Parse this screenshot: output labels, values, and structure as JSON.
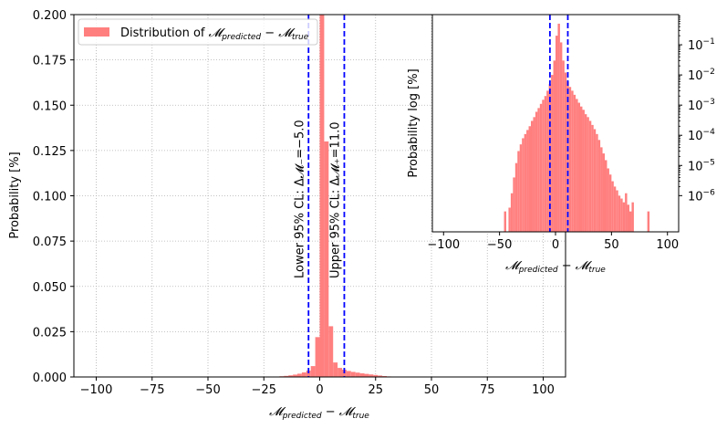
{
  "chart_data": [
    {
      "type": "bar",
      "name": "main",
      "xlabel": "𝓜predicted − 𝓜true",
      "ylabel": "Probability [%]",
      "xlim": [
        -110,
        110
      ],
      "ylim": [
        0,
        0.2
      ],
      "grid": true,
      "legend_placement": "upper-left",
      "xticks": [
        "−100",
        "−75",
        "−50",
        "−25",
        "0",
        "25",
        "50",
        "75",
        "100"
      ],
      "xtick_values": [
        -100,
        -75,
        -50,
        -25,
        0,
        25,
        50,
        75,
        100
      ],
      "yticks": [
        "0.000",
        "0.025",
        "0.050",
        "0.075",
        "0.100",
        "0.125",
        "0.150",
        "0.175",
        "0.200"
      ],
      "ytick_values": [
        0,
        0.025,
        0.05,
        0.075,
        0.1,
        0.125,
        0.15,
        0.175,
        0.2
      ],
      "legend_label": "Distribution of 𝓜predicted − 𝓜true",
      "series_color": "#ff7f7f",
      "line_color": "#0000ff",
      "bin_width": 2,
      "bins": [
        [
          -18,
          0.0004
        ],
        [
          -16,
          0.0006
        ],
        [
          -14,
          0.0009
        ],
        [
          -12,
          0.0013
        ],
        [
          -10,
          0.0018
        ],
        [
          -8,
          0.0025
        ],
        [
          -6,
          0.0035
        ],
        [
          -4,
          0.006
        ],
        [
          -2,
          0.022
        ],
        [
          0,
          0.26
        ],
        [
          2,
          0.13
        ],
        [
          4,
          0.028
        ],
        [
          6,
          0.008
        ],
        [
          8,
          0.005
        ],
        [
          10,
          0.004
        ],
        [
          12,
          0.0033
        ],
        [
          14,
          0.0028
        ],
        [
          16,
          0.0024
        ],
        [
          18,
          0.002
        ],
        [
          20,
          0.0017
        ],
        [
          22,
          0.0014
        ],
        [
          24,
          0.0011
        ],
        [
          26,
          0.0008
        ],
        [
          28,
          0.0005
        ],
        [
          30,
          0.0003
        ]
      ],
      "vlines": [
        {
          "x": -5.0,
          "label": "Lower 95% CL: Δ𝓜₋=−5.0"
        },
        {
          "x": 11.0,
          "label": "Upper 95% CL: Δ𝓜₊=11.0"
        }
      ]
    },
    {
      "type": "bar",
      "name": "inset",
      "xlabel": "𝓜predicted − 𝓜true",
      "ylabel": "Probability log [%]",
      "xlim": [
        -110,
        110
      ],
      "log_y": true,
      "ylim_log10": [
        -7.2,
        0
      ],
      "xticks": [
        "−100",
        "−50",
        "0",
        "50",
        "100"
      ],
      "xtick_values": [
        -100,
        -50,
        0,
        50,
        100
      ],
      "ytick_exponents": [
        -6,
        -5,
        -4,
        -3,
        -2,
        -1
      ],
      "ytick_base": "10",
      "bin_width": 2,
      "bins": [
        [
          -46,
          3e-07
        ],
        [
          -42,
          4e-07
        ],
        [
          -40,
          1.2e-06
        ],
        [
          -38,
          4e-06
        ],
        [
          -36,
          1.2e-05
        ],
        [
          -34,
          3e-05
        ],
        [
          -32,
          5e-05
        ],
        [
          -30,
          8e-05
        ],
        [
          -28,
          0.00011
        ],
        [
          -26,
          0.00015
        ],
        [
          -24,
          0.0002
        ],
        [
          -22,
          0.0003
        ],
        [
          -20,
          0.0004
        ],
        [
          -18,
          0.0006
        ],
        [
          -16,
          0.0008
        ],
        [
          -14,
          0.0011
        ],
        [
          -12,
          0.0015
        ],
        [
          -10,
          0.002
        ],
        [
          -8,
          0.003
        ],
        [
          -6,
          0.005
        ],
        [
          -4,
          0.01
        ],
        [
          -2,
          0.03
        ],
        [
          0,
          0.2
        ],
        [
          2,
          0.5
        ],
        [
          4,
          0.12
        ],
        [
          6,
          0.03
        ],
        [
          8,
          0.012
        ],
        [
          10,
          0.006
        ],
        [
          12,
          0.004
        ],
        [
          14,
          0.003
        ],
        [
          16,
          0.0022
        ],
        [
          18,
          0.0016
        ],
        [
          20,
          0.0012
        ],
        [
          22,
          0.0009
        ],
        [
          24,
          0.0007
        ],
        [
          26,
          0.0005
        ],
        [
          28,
          0.0004
        ],
        [
          30,
          0.0003
        ],
        [
          32,
          0.00022
        ],
        [
          34,
          0.00016
        ],
        [
          36,
          0.00011
        ],
        [
          38,
          7e-05
        ],
        [
          40,
          4e-05
        ],
        [
          42,
          2.5e-05
        ],
        [
          44,
          1.5e-05
        ],
        [
          46,
          8e-06
        ],
        [
          48,
          5e-06
        ],
        [
          50,
          3e-06
        ],
        [
          52,
          2e-06
        ],
        [
          54,
          1.5e-06
        ],
        [
          56,
          1e-06
        ],
        [
          58,
          8e-07
        ],
        [
          60,
          6e-07
        ],
        [
          62,
          1.2e-06
        ],
        [
          64,
          5e-07
        ],
        [
          66,
          3e-07
        ],
        [
          68,
          6e-07
        ],
        [
          82,
          3e-07
        ]
      ],
      "vlines": [
        {
          "x": -5.0
        },
        {
          "x": 11.0
        }
      ]
    }
  ]
}
